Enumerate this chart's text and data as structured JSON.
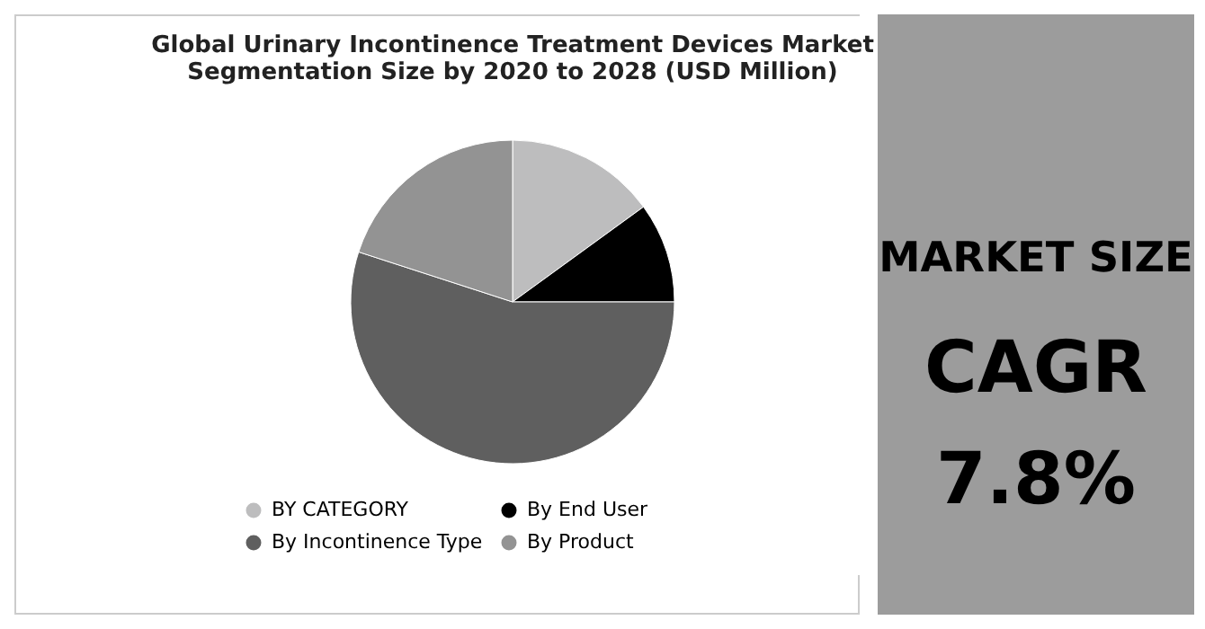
{
  "chart_data": [
    {
      "type": "pie",
      "title": "Global Urinary Incontinence Treatment Devices Market Segmentation Size by 2020 to 2028 (USD Million)",
      "categories": [
        "BY CATEGORY",
        "By End User",
        "By Incontinence Type",
        "By Product"
      ],
      "values": [
        15,
        10,
        55,
        20
      ],
      "colors": [
        "#bdbdbe",
        "#000000",
        "#5f5f5f",
        "#939393"
      ],
      "legend": "bottom"
    },
    {
      "type": "other",
      "title": "MARKET SIZE",
      "annotations": [
        "CAGR",
        "7.8%"
      ]
    }
  ]
}
